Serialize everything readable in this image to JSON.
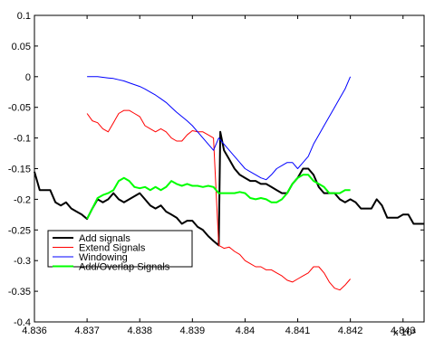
{
  "chart_data": {
    "type": "line",
    "title": "",
    "xlabel": "",
    "ylabel": "",
    "x_multiplier_label": "x 10⁴",
    "xlim": [
      48360,
      48434
    ],
    "ylim": [
      -0.4,
      0.1
    ],
    "x_ticks": [
      48360,
      48370,
      48380,
      48390,
      48400,
      48410,
      48420,
      48430
    ],
    "x_tick_labels": [
      "4.836",
      "4.837",
      "4.838",
      "4.839",
      "4.84",
      "4.841",
      "4.842",
      "4.843"
    ],
    "y_ticks": [
      0.1,
      0.05,
      0,
      -0.05,
      -0.1,
      -0.15,
      -0.2,
      -0.25,
      -0.3,
      -0.35,
      -0.4
    ],
    "y_tick_labels": [
      "0.1",
      "0.05",
      "0",
      "-0.05",
      "-0.1",
      "-0.15",
      "-0.2",
      "-0.25",
      "-0.3",
      "-0.35",
      "-0.4"
    ],
    "grid": false,
    "legend_position": "bottom-left",
    "series": [
      {
        "name": "Add signals",
        "color": "#000000",
        "x": [
          48360,
          48361,
          48362,
          48363,
          48364,
          48365,
          48366,
          48367,
          48368,
          48369,
          48370,
          48371,
          48372,
          48373,
          48374,
          48375,
          48376,
          48377,
          48378,
          48379,
          48380,
          48381,
          48382,
          48383,
          48384,
          48385,
          48386,
          48387,
          48388,
          48389,
          48390,
          48391,
          48392,
          48393,
          48394,
          48395,
          48395.3,
          48396,
          48397,
          48398,
          48399,
          48400,
          48401,
          48402,
          48403,
          48404,
          48405,
          48406,
          48407,
          48408,
          48409,
          48410,
          48411,
          48412,
          48413,
          48414,
          48415,
          48416,
          48417,
          48418,
          48419,
          48420,
          48421,
          48422,
          48423,
          48424,
          48425,
          48426,
          48427,
          48428,
          48429,
          48430,
          48431,
          48432,
          48433,
          48434
        ],
        "y": [
          -0.155,
          -0.185,
          -0.185,
          -0.185,
          -0.205,
          -0.21,
          -0.205,
          -0.215,
          -0.22,
          -0.225,
          -0.232,
          -0.215,
          -0.2,
          -0.205,
          -0.2,
          -0.19,
          -0.2,
          -0.205,
          -0.2,
          -0.195,
          -0.19,
          -0.2,
          -0.21,
          -0.215,
          -0.21,
          -0.22,
          -0.225,
          -0.23,
          -0.24,
          -0.235,
          -0.235,
          -0.245,
          -0.25,
          -0.26,
          -0.268,
          -0.275,
          -0.09,
          -0.12,
          -0.135,
          -0.15,
          -0.16,
          -0.165,
          -0.17,
          -0.17,
          -0.175,
          -0.175,
          -0.18,
          -0.185,
          -0.19,
          -0.19,
          -0.175,
          -0.165,
          -0.15,
          -0.15,
          -0.16,
          -0.18,
          -0.19,
          -0.19,
          -0.19,
          -0.2,
          -0.205,
          -0.2,
          -0.205,
          -0.215,
          -0.215,
          -0.215,
          -0.2,
          -0.21,
          -0.23,
          -0.23,
          -0.23,
          -0.225,
          -0.225,
          -0.24,
          -0.24,
          -0.24
        ]
      },
      {
        "name": "Extend Signals",
        "color": "#ff0000",
        "x": [
          48370,
          48371,
          48372,
          48373,
          48374,
          48375,
          48376,
          48377,
          48378,
          48379,
          48380,
          48381,
          48382,
          48383,
          48384,
          48385,
          48386,
          48387,
          48388,
          48389,
          48390,
          48391,
          48392,
          48393,
          48394,
          48395,
          48396,
          48397,
          48398,
          48399,
          48400,
          48401,
          48402,
          48403,
          48404,
          48405,
          48406,
          48407,
          48408,
          48409,
          48410,
          48411,
          48412,
          48413,
          48414,
          48415,
          48416,
          48417,
          48418,
          48419,
          48420
        ],
        "y": [
          -0.06,
          -0.072,
          -0.075,
          -0.085,
          -0.09,
          -0.075,
          -0.06,
          -0.055,
          -0.055,
          -0.06,
          -0.065,
          -0.08,
          -0.085,
          -0.09,
          -0.085,
          -0.09,
          -0.1,
          -0.105,
          -0.105,
          -0.095,
          -0.088,
          -0.09,
          -0.09,
          -0.095,
          -0.1,
          -0.275,
          -0.28,
          -0.278,
          -0.285,
          -0.29,
          -0.3,
          -0.305,
          -0.31,
          -0.31,
          -0.315,
          -0.315,
          -0.32,
          -0.325,
          -0.332,
          -0.335,
          -0.33,
          -0.325,
          -0.32,
          -0.31,
          -0.31,
          -0.32,
          -0.335,
          -0.345,
          -0.348,
          -0.34,
          -0.33
        ]
      },
      {
        "name": "Windowing",
        "color": "#0000ff",
        "x": [
          48370,
          48371,
          48372,
          48373,
          48374,
          48375,
          48376,
          48377,
          48378,
          48379,
          48380,
          48381,
          48382,
          48383,
          48384,
          48385,
          48386,
          48387,
          48388,
          48389,
          48390,
          48391,
          48392,
          48393,
          48394,
          48395,
          48396,
          48397,
          48398,
          48399,
          48400,
          48401,
          48402,
          48403,
          48404,
          48405,
          48406,
          48407,
          48408,
          48409,
          48410,
          48411,
          48412,
          48413,
          48414,
          48415,
          48416,
          48417,
          48418,
          48419,
          48420
        ],
        "y": [
          0,
          0,
          0,
          -0.001,
          -0.002,
          -0.003,
          -0.005,
          -0.007,
          -0.01,
          -0.013,
          -0.016,
          -0.02,
          -0.025,
          -0.03,
          -0.036,
          -0.042,
          -0.05,
          -0.058,
          -0.065,
          -0.072,
          -0.08,
          -0.09,
          -0.1,
          -0.11,
          -0.12,
          -0.1,
          -0.11,
          -0.12,
          -0.13,
          -0.14,
          -0.15,
          -0.155,
          -0.16,
          -0.165,
          -0.168,
          -0.16,
          -0.15,
          -0.145,
          -0.14,
          -0.14,
          -0.15,
          -0.14,
          -0.13,
          -0.11,
          -0.095,
          -0.08,
          -0.065,
          -0.05,
          -0.035,
          -0.02,
          0
        ]
      },
      {
        "name": "Add/Overlap Signals",
        "color": "#00ff00",
        "x": [
          48370,
          48371,
          48372,
          48373,
          48374,
          48375,
          48376,
          48377,
          48378,
          48379,
          48380,
          48381,
          48382,
          48383,
          48384,
          48385,
          48386,
          48387,
          48388,
          48389,
          48390,
          48391,
          48392,
          48393,
          48394,
          48395,
          48396,
          48397,
          48398,
          48399,
          48400,
          48401,
          48402,
          48403,
          48404,
          48405,
          48406,
          48407,
          48408,
          48409,
          48410,
          48411,
          48412,
          48413,
          48414,
          48415,
          48416,
          48417,
          48418,
          48419,
          48420
        ],
        "y": [
          -0.232,
          -0.215,
          -0.198,
          -0.193,
          -0.19,
          -0.185,
          -0.17,
          -0.165,
          -0.17,
          -0.18,
          -0.182,
          -0.18,
          -0.185,
          -0.18,
          -0.185,
          -0.18,
          -0.17,
          -0.175,
          -0.178,
          -0.175,
          -0.178,
          -0.178,
          -0.18,
          -0.178,
          -0.18,
          -0.19,
          -0.19,
          -0.19,
          -0.19,
          -0.188,
          -0.19,
          -0.198,
          -0.2,
          -0.198,
          -0.2,
          -0.205,
          -0.205,
          -0.2,
          -0.19,
          -0.175,
          -0.165,
          -0.16,
          -0.16,
          -0.17,
          -0.175,
          -0.18,
          -0.19,
          -0.19,
          -0.19,
          -0.185,
          -0.185
        ]
      }
    ]
  }
}
